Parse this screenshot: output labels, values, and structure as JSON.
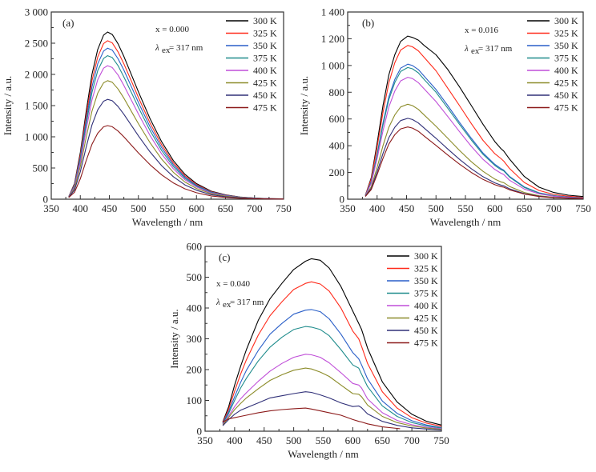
{
  "chart_data": [
    {
      "type": "line",
      "panel_label": "(a)",
      "annotation_x": "x = 0.000",
      "annotation_lambda": "λex = 317 nm",
      "annotation_lambda_symbol": "λ",
      "annotation_lambda_sub": "ex",
      "annotation_lambda_value": "= 317 nm",
      "xlabel": "Wavelength / nm",
      "ylabel": "Intensity / a.u.",
      "xlim": [
        350,
        750
      ],
      "ylim": [
        0,
        3000
      ],
      "xticks": [
        350,
        400,
        450,
        500,
        550,
        600,
        650,
        700,
        750
      ],
      "xtick_labels": [
        "350",
        "400",
        "450",
        "500",
        "550",
        "600",
        "650",
        "700",
        "750"
      ],
      "yticks": [
        0,
        500,
        1000,
        1500,
        2000,
        2500,
        3000
      ],
      "ytick_labels": [
        "0",
        "500",
        "1 000",
        "1 500",
        "2 000",
        "2 500",
        "3 000"
      ],
      "legend_position": "top-right",
      "grid": false,
      "x": [
        380,
        390,
        400,
        410,
        420,
        430,
        440,
        447,
        455,
        465,
        475,
        490,
        500,
        520,
        540,
        560,
        580,
        600,
        625,
        650,
        675,
        700,
        725,
        750
      ],
      "series": [
        {
          "name": "300 K",
          "color": "#000000",
          "peak": 2680,
          "values": [
            40,
            250,
            750,
            1400,
            2000,
            2400,
            2630,
            2680,
            2640,
            2490,
            2290,
            1950,
            1720,
            1290,
            920,
            620,
            400,
            250,
            130,
            70,
            35,
            18,
            9,
            5
          ]
        },
        {
          "name": "325 K",
          "color": "#ff2a1a",
          "peak": 2540,
          "values": [
            40,
            235,
            710,
            1330,
            1900,
            2280,
            2495,
            2540,
            2505,
            2360,
            2170,
            1850,
            1630,
            1220,
            870,
            585,
            375,
            235,
            122,
            65,
            33,
            17,
            8,
            4
          ]
        },
        {
          "name": "350 K",
          "color": "#2a5fc8",
          "peak": 2420,
          "values": [
            38,
            222,
            670,
            1260,
            1800,
            2170,
            2375,
            2420,
            2390,
            2250,
            2070,
            1760,
            1550,
            1160,
            825,
            555,
            355,
            222,
            115,
            61,
            31,
            16,
            8,
            4
          ]
        },
        {
          "name": "375 K",
          "color": "#1f8c8c",
          "peak": 2300,
          "values": [
            36,
            210,
            635,
            1195,
            1710,
            2060,
            2255,
            2300,
            2270,
            2140,
            1960,
            1670,
            1470,
            1100,
            780,
            525,
            335,
            210,
            108,
            58,
            29,
            15,
            7,
            4
          ]
        },
        {
          "name": "400 K",
          "color": "#c04fd8",
          "peak": 2140,
          "values": [
            34,
            195,
            590,
            1110,
            1590,
            1915,
            2100,
            2140,
            2110,
            1990,
            1825,
            1550,
            1365,
            1020,
            725,
            488,
            312,
            195,
            100,
            54,
            27,
            14,
            7,
            3
          ]
        },
        {
          "name": "425 K",
          "color": "#8c8c2a",
          "peak": 1900,
          "values": [
            32,
            174,
            525,
            985,
            1410,
            1700,
            1865,
            1900,
            1875,
            1765,
            1620,
            1375,
            1210,
            905,
            642,
            432,
            276,
            172,
            88,
            47,
            24,
            12,
            6,
            3
          ]
        },
        {
          "name": "450 K",
          "color": "#303078",
          "peak": 1600,
          "values": [
            30,
            147,
            442,
            830,
            1190,
            1432,
            1570,
            1600,
            1578,
            1485,
            1362,
            1155,
            1015,
            758,
            537,
            361,
            230,
            143,
            73,
            39,
            20,
            10,
            5,
            3
          ]
        },
        {
          "name": "475 K",
          "color": "#8c1a1a",
          "peak": 1180,
          "values": [
            28,
            110,
            328,
            615,
            880,
            1058,
            1160,
            1180,
            1162,
            1092,
            1000,
            845,
            742,
            552,
            390,
            262,
            167,
            104,
            53,
            28,
            14,
            7,
            4,
            2
          ]
        }
      ]
    },
    {
      "type": "line",
      "panel_label": "(b)",
      "annotation_x": "x = 0.016",
      "annotation_lambda": "λex = 317 nm",
      "annotation_lambda_symbol": "λ",
      "annotation_lambda_sub": "ex",
      "annotation_lambda_value": "= 317 nm",
      "xlabel": "Wavelength / nm",
      "ylabel": "Intensity / a.u.",
      "xlim": [
        350,
        750
      ],
      "ylim": [
        0,
        1400
      ],
      "xticks": [
        350,
        400,
        450,
        500,
        550,
        600,
        650,
        700,
        750
      ],
      "xtick_labels": [
        "350",
        "400",
        "450",
        "500",
        "550",
        "600",
        "650",
        "700",
        "750"
      ],
      "yticks": [
        0,
        200,
        400,
        600,
        800,
        1000,
        1200,
        1400
      ],
      "ytick_labels": [
        "0",
        "200",
        "400",
        "600",
        "800",
        "1 000",
        "1 200",
        "1 400"
      ],
      "legend_position": "top-right",
      "grid": false,
      "x": [
        380,
        390,
        400,
        410,
        420,
        430,
        440,
        452,
        460,
        470,
        480,
        500,
        520,
        540,
        560,
        580,
        600,
        610,
        615,
        625,
        650,
        675,
        700,
        725,
        750
      ],
      "series": [
        {
          "name": "300 K",
          "color": "#000000",
          "peak": 1220,
          "values": [
            30,
            160,
            420,
            700,
            930,
            1080,
            1180,
            1220,
            1210,
            1190,
            1150,
            1080,
            970,
            840,
            700,
            560,
            430,
            380,
            360,
            300,
            170,
            90,
            50,
            30,
            20
          ]
        },
        {
          "name": "325 K",
          "color": "#ff2a1a",
          "peak": 1150,
          "values": [
            30,
            150,
            390,
            650,
            870,
            1020,
            1115,
            1150,
            1140,
            1110,
            1060,
            960,
            830,
            700,
            565,
            440,
            340,
            305,
            285,
            230,
            125,
            65,
            36,
            22,
            14
          ]
        },
        {
          "name": "350 K",
          "color": "#2a5fc8",
          "peak": 1010,
          "values": [
            28,
            132,
            340,
            570,
            765,
            895,
            980,
            1010,
            1000,
            970,
            920,
            820,
            700,
            575,
            455,
            345,
            260,
            230,
            218,
            170,
            92,
            48,
            27,
            16,
            10
          ]
        },
        {
          "name": "375 K",
          "color": "#1f8c8c",
          "peak": 985,
          "values": [
            28,
            128,
            332,
            555,
            745,
            872,
            955,
            985,
            975,
            945,
            895,
            800,
            680,
            560,
            442,
            335,
            252,
            222,
            212,
            165,
            88,
            46,
            26,
            15,
            10
          ]
        },
        {
          "name": "400 K",
          "color": "#c04fd8",
          "peak": 912,
          "values": [
            26,
            118,
            305,
            512,
            690,
            808,
            885,
            912,
            902,
            872,
            825,
            730,
            618,
            505,
            395,
            298,
            222,
            195,
            185,
            142,
            76,
            40,
            22,
            13,
            8
          ]
        },
        {
          "name": "425 K",
          "color": "#8c8c2a",
          "peak": 710,
          "values": [
            24,
            92,
            238,
            400,
            538,
            630,
            690,
            710,
            700,
            672,
            630,
            545,
            455,
            365,
            280,
            208,
            150,
            130,
            124,
            95,
            50,
            26,
            14,
            9,
            6
          ]
        },
        {
          "name": "450 K",
          "color": "#303078",
          "peak": 605,
          "values": [
            22,
            80,
            205,
            342,
            460,
            538,
            588,
            605,
            596,
            570,
            532,
            455,
            375,
            298,
            228,
            168,
            122,
            106,
            100,
            78,
            42,
            22,
            12,
            8,
            5
          ]
        },
        {
          "name": "475 K",
          "color": "#8c1a1a",
          "peak": 540,
          "values": [
            20,
            72,
            184,
            306,
            412,
            482,
            526,
            540,
            532,
            508,
            472,
            402,
            330,
            262,
            200,
            148,
            108,
            94,
            90,
            70,
            38,
            20,
            11,
            7,
            5
          ]
        }
      ]
    },
    {
      "type": "line",
      "panel_label": "(c)",
      "annotation_x": "x = 0.040",
      "annotation_lambda": "λex = 317 nm",
      "annotation_lambda_symbol": "λ",
      "annotation_lambda_sub": "ex",
      "annotation_lambda_value": "= 317 nm",
      "xlabel": "Wavelength / nm",
      "ylabel": "Intensity / a.u.",
      "xlim": [
        350,
        750
      ],
      "ylim": [
        0,
        600
      ],
      "xticks": [
        350,
        400,
        450,
        500,
        550,
        600,
        650,
        700,
        750
      ],
      "xtick_labels": [
        "350",
        "400",
        "450",
        "500",
        "550",
        "600",
        "650",
        "700",
        "750"
      ],
      "yticks": [
        0,
        100,
        200,
        300,
        400,
        500,
        600
      ],
      "ytick_labels": [
        "0",
        "100",
        "200",
        "300",
        "400",
        "500",
        "600"
      ],
      "legend_position": "top-right",
      "grid": false,
      "x": [
        380,
        390,
        400,
        410,
        420,
        440,
        460,
        480,
        500,
        520,
        530,
        545,
        560,
        580,
        600,
        610,
        615,
        625,
        650,
        675,
        700,
        725,
        750
      ],
      "series": [
        {
          "name": "300 K",
          "color": "#000000",
          "peak": 560,
          "values": [
            30,
            80,
            150,
            210,
            265,
            360,
            430,
            480,
            525,
            552,
            560,
            555,
            530,
            470,
            390,
            350,
            330,
            270,
            160,
            95,
            55,
            32,
            20
          ]
        },
        {
          "name": "325 K",
          "color": "#ff2a1a",
          "peak": 485,
          "values": [
            28,
            72,
            130,
            185,
            232,
            312,
            375,
            420,
            460,
            480,
            485,
            478,
            455,
            400,
            325,
            300,
            275,
            220,
            128,
            75,
            44,
            26,
            16
          ]
        },
        {
          "name": "350 K",
          "color": "#2a5fc8",
          "peak": 395,
          "values": [
            26,
            64,
            112,
            158,
            198,
            262,
            315,
            350,
            380,
            393,
            395,
            388,
            365,
            315,
            255,
            235,
            215,
            170,
            98,
            58,
            34,
            20,
            12
          ]
        },
        {
          "name": "375 K",
          "color": "#1f8c8c",
          "peak": 340,
          "values": [
            24,
            58,
            100,
            140,
            172,
            228,
            273,
            305,
            330,
            340,
            338,
            330,
            310,
            265,
            215,
            205,
            185,
            145,
            82,
            48,
            28,
            17,
            10
          ]
        },
        {
          "name": "400 K",
          "color": "#c04fd8",
          "peak": 250,
          "values": [
            22,
            50,
            80,
            105,
            125,
            162,
            195,
            220,
            240,
            250,
            248,
            240,
            222,
            190,
            155,
            150,
            140,
            105,
            60,
            35,
            21,
            13,
            8
          ]
        },
        {
          "name": "425 K",
          "color": "#8c8c2a",
          "peak": 205,
          "values": [
            20,
            45,
            70,
            90,
            108,
            138,
            165,
            183,
            198,
            205,
            202,
            192,
            178,
            150,
            122,
            120,
            112,
            85,
            48,
            28,
            17,
            10,
            6
          ]
        },
        {
          "name": "450 K",
          "color": "#303078",
          "peak": 128,
          "values": [
            18,
            38,
            55,
            68,
            76,
            92,
            108,
            115,
            122,
            128,
            126,
            118,
            108,
            92,
            80,
            82,
            76,
            56,
            32,
            19,
            11,
            7,
            4
          ]
        },
        {
          "name": "475 K",
          "color": "#8c1a1a",
          "peak": 75,
          "values": [
            30,
            40,
            44,
            48,
            52,
            60,
            66,
            70,
            73,
            75,
            72,
            66,
            60,
            52,
            38,
            32,
            30,
            24,
            14,
            9,
            null,
            null,
            null
          ]
        }
      ],
      "note_475K_ends_at": 680
    }
  ]
}
